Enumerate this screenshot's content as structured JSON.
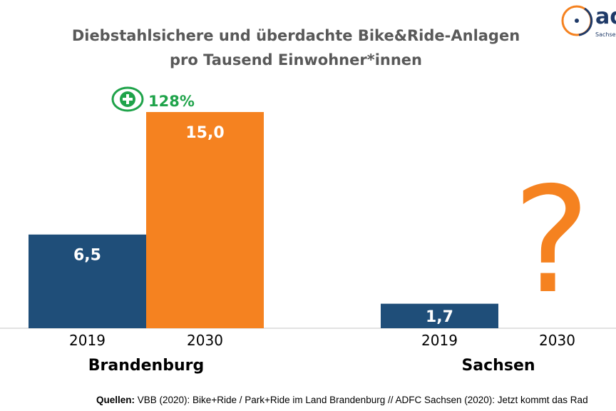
{
  "chart_data": {
    "type": "bar",
    "title": [
      "Diebstahlsichere und überdachte Bike&Ride-Anlagen",
      "pro Tausend Einwohner*innen"
    ],
    "groups": [
      {
        "name": "Brandenburg",
        "categories": [
          "2019",
          "2030"
        ],
        "values": [
          6.5,
          15.0
        ],
        "labels": [
          "6,5",
          "15,0"
        ]
      },
      {
        "name": "Sachsen",
        "categories": [
          "2019",
          "2030"
        ],
        "values": [
          1.7,
          null
        ],
        "labels": [
          "1,7",
          "?"
        ]
      }
    ],
    "annotation": {
      "text": "128%",
      "icon": "plus-circle-icon"
    },
    "colors": {
      "2019": "#1f4e79",
      "2030": "#f58220",
      "annotation": "#1fa34a",
      "title": "#595959"
    },
    "grid": false
  },
  "logo": {
    "text": "adfc",
    "subtext": "Sachsen"
  },
  "footer": {
    "label": "Quellen:",
    "text": " VBB (2020): Bike+Ride / Park+Ride im Land Brandenburg // ADFC Sachsen (2020): Jetzt kommt das Rad"
  }
}
